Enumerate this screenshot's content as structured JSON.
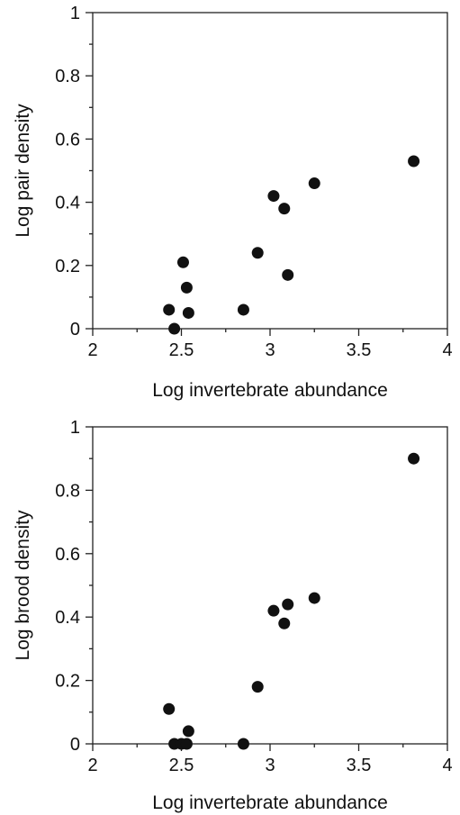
{
  "chart_data": [
    {
      "type": "scatter",
      "title": "",
      "xlabel": "Log invertebrate abundance",
      "ylabel": "Log pair density",
      "xlim": [
        2,
        4
      ],
      "ylim": [
        0,
        1
      ],
      "x_ticks": [
        "2",
        "2.5",
        "3",
        "3.5",
        "4"
      ],
      "y_ticks": [
        "0",
        "0.2",
        "0.4",
        "0.6",
        "0.8",
        "1"
      ],
      "grid": false,
      "points": [
        {
          "x": 2.43,
          "y": 0.06
        },
        {
          "x": 2.46,
          "y": 0.0
        },
        {
          "x": 2.51,
          "y": 0.21
        },
        {
          "x": 2.53,
          "y": 0.13
        },
        {
          "x": 2.54,
          "y": 0.05
        },
        {
          "x": 2.85,
          "y": 0.06
        },
        {
          "x": 2.93,
          "y": 0.24
        },
        {
          "x": 3.02,
          "y": 0.42
        },
        {
          "x": 3.08,
          "y": 0.38
        },
        {
          "x": 3.1,
          "y": 0.17
        },
        {
          "x": 3.25,
          "y": 0.46
        },
        {
          "x": 3.81,
          "y": 0.53
        }
      ]
    },
    {
      "type": "scatter",
      "title": "",
      "xlabel": "Log invertebrate abundance",
      "ylabel": "Log brood density",
      "xlim": [
        2,
        4
      ],
      "ylim": [
        0,
        1
      ],
      "x_ticks": [
        "2",
        "2.5",
        "3",
        "3.5",
        "4"
      ],
      "y_ticks": [
        "0",
        "0.2",
        "0.4",
        "0.6",
        "0.8",
        "1"
      ],
      "grid": false,
      "points": [
        {
          "x": 2.43,
          "y": 0.11
        },
        {
          "x": 2.46,
          "y": 0.0
        },
        {
          "x": 2.5,
          "y": 0.0
        },
        {
          "x": 2.53,
          "y": 0.0
        },
        {
          "x": 2.54,
          "y": 0.04
        },
        {
          "x": 2.85,
          "y": 0.0
        },
        {
          "x": 2.93,
          "y": 0.18
        },
        {
          "x": 3.02,
          "y": 0.42
        },
        {
          "x": 3.08,
          "y": 0.38
        },
        {
          "x": 3.1,
          "y": 0.44
        },
        {
          "x": 3.25,
          "y": 0.46
        },
        {
          "x": 3.81,
          "y": 0.9
        }
      ]
    }
  ]
}
